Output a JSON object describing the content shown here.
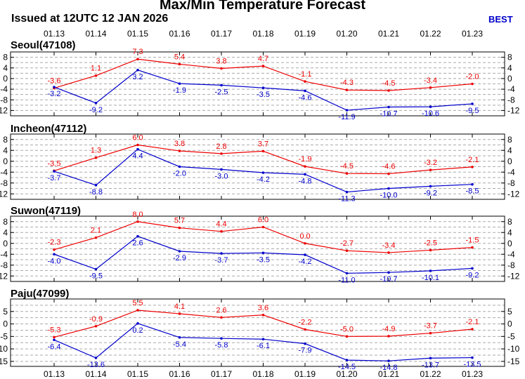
{
  "title": "Max/Min Temperature Forecast",
  "issued": "Issued at 12UTC 12 JAN 2026",
  "model": "BEST",
  "colors": {
    "max": "#ee0000",
    "min": "#0000cc",
    "grid": "#aaaaaa"
  },
  "chart_data": {
    "type": "line",
    "dates": [
      "01.13",
      "01.14",
      "01.15",
      "01.16",
      "01.17",
      "01.18",
      "01.19",
      "01.20",
      "01.21",
      "01.22",
      "01.23"
    ],
    "panels": [
      {
        "station": "Seoul(47108)",
        "yticks": [
          "8",
          "4",
          "0",
          "-4",
          "-8",
          "-12"
        ],
        "ylim": [
          -14,
          10
        ],
        "tick_values": [
          8,
          4,
          0,
          -4,
          -8,
          -12
        ],
        "grid_values": [
          10,
          8,
          6,
          4,
          2,
          0,
          -2,
          -4,
          -6,
          -8,
          -10,
          -12,
          -14
        ],
        "series": [
          {
            "kind": "max",
            "values": [
              -3.6,
              1.1,
              7.3,
              5.4,
              3.8,
              4.7,
              -1.1,
              -4.3,
              -4.5,
              -3.4,
              -2.0
            ],
            "labels": [
              "-3.6",
              "1.1",
              "7.3",
              "5.4",
              "3.8",
              "4.7",
              "-1.1",
              "-4.3",
              "-4.5",
              "-3.4",
              "-2.0"
            ]
          },
          {
            "kind": "min",
            "values": [
              -3.2,
              -9.2,
              3.2,
              -1.9,
              -2.5,
              -3.5,
              -4.6,
              -11.9,
              -10.7,
              -10.6,
              -9.5
            ],
            "labels": [
              "-3.2",
              "-9.2",
              "3.2",
              "-1.9",
              "-2.5",
              "-3.5",
              "-4.6",
              "-11.9",
              "-10.7",
              "-10.6",
              "-9.5"
            ]
          }
        ]
      },
      {
        "station": "Incheon(47112)",
        "yticks": [
          "8",
          "4",
          "0",
          "-4",
          "-8",
          "-12"
        ],
        "ylim": [
          -14,
          10
        ],
        "tick_values": [
          8,
          4,
          0,
          -4,
          -8,
          -12
        ],
        "grid_values": [
          10,
          8,
          6,
          4,
          2,
          0,
          -2,
          -4,
          -6,
          -8,
          -10,
          -12,
          -14
        ],
        "series": [
          {
            "kind": "max",
            "values": [
              -3.5,
              1.3,
              6.0,
              3.8,
              2.8,
              3.7,
              -1.9,
              -4.5,
              -4.6,
              -3.2,
              -2.1
            ],
            "labels": [
              "-3.5",
              "1.3",
              "6.0",
              "3.8",
              "2.8",
              "3.7",
              "-1.9",
              "-4.5",
              "-4.6",
              "-3.2",
              "-2.1"
            ]
          },
          {
            "kind": "min",
            "values": [
              -3.7,
              -8.8,
              4.4,
              -2.0,
              -3.0,
              -4.2,
              -4.8,
              -11.3,
              -10.0,
              -9.2,
              -8.5
            ],
            "labels": [
              "-3.7",
              "-8.8",
              "4.4",
              "-2.0",
              "-3.0",
              "-4.2",
              "-4.8",
              "-11.3",
              "-10.0",
              "-9.2",
              "-8.5"
            ]
          }
        ]
      },
      {
        "station": "Suwon(47119)",
        "yticks": [
          "8",
          "4",
          "0",
          "-4",
          "-8",
          "-12"
        ],
        "ylim": [
          -14,
          10
        ],
        "tick_values": [
          8,
          4,
          0,
          -4,
          -8,
          -12
        ],
        "grid_values": [
          10,
          8,
          6,
          4,
          2,
          0,
          -2,
          -4,
          -6,
          -8,
          -10,
          -12,
          -14
        ],
        "series": [
          {
            "kind": "max",
            "values": [
              -2.3,
              2.1,
              8.0,
              5.7,
              4.4,
              6.0,
              0.0,
              -2.7,
              -3.4,
              -2.5,
              -1.5
            ],
            "labels": [
              "-2.3",
              "2.1",
              "8.0",
              "5.7",
              "4.4",
              "6.0",
              "0.0",
              "-2.7",
              "-3.4",
              "-2.5",
              "-1.5"
            ]
          },
          {
            "kind": "min",
            "values": [
              -4.0,
              -9.5,
              2.6,
              -2.9,
              -3.7,
              -3.5,
              -4.2,
              -11.0,
              -10.7,
              -10.1,
              -9.2
            ],
            "labels": [
              "-4.0",
              "-9.5",
              "2.6",
              "-2.9",
              "-3.7",
              "-3.5",
              "-4.2",
              "-11.0",
              "-10.7",
              "-10.1",
              "-9.2"
            ]
          }
        ]
      },
      {
        "station": "Paju(47099)",
        "yticks": [
          "5",
          "0",
          "-5",
          "-10",
          "-15"
        ],
        "ylim": [
          -17,
          10
        ],
        "tick_values": [
          5,
          0,
          -5,
          -10,
          -15
        ],
        "grid_values": [
          7.5,
          5,
          2.5,
          0,
          -2.5,
          -5,
          -7.5,
          -10,
          -12.5,
          -15
        ],
        "series": [
          {
            "kind": "max",
            "values": [
              -5.3,
              -0.9,
              5.5,
              4.1,
              2.6,
              3.6,
              -2.2,
              -5.0,
              -4.9,
              -3.7,
              -2.1
            ],
            "labels": [
              "-5.3",
              "-0.9",
              "5.5",
              "4.1",
              "2.6",
              "3.6",
              "-2.2",
              "-5.0",
              "-4.9",
              "-3.7",
              "-2.1"
            ]
          },
          {
            "kind": "min",
            "values": [
              -6.4,
              -13.6,
              0.2,
              -5.4,
              -5.8,
              -6.1,
              -7.9,
              -14.5,
              -14.8,
              -13.7,
              -13.5
            ],
            "labels": [
              "-6.4",
              "-13.6",
              "0.2",
              "-5.4",
              "-5.8",
              "-6.1",
              "-7.9",
              "-14.5",
              "-14.8",
              "-13.7",
              "-13.5"
            ]
          }
        ]
      }
    ]
  }
}
